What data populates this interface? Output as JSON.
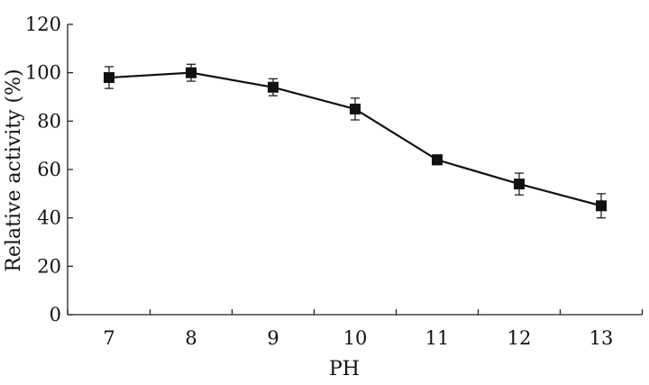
{
  "chart_data": {
    "type": "line",
    "xlabel": "PH",
    "ylabel": "Relative activity (%)",
    "x": [
      "7",
      "8",
      "9",
      "10",
      "11",
      "12",
      "13"
    ],
    "ylim": [
      0,
      120
    ],
    "yticks": [
      "0",
      "20",
      "40",
      "60",
      "80",
      "100",
      "120"
    ],
    "grid": false,
    "series": [
      {
        "values": [
          98,
          100,
          94,
          85,
          64,
          54,
          45
        ],
        "error": [
          4.5,
          3.5,
          3.5,
          4.5,
          2,
          4.5,
          5
        ]
      }
    ],
    "marker": "square",
    "colors": {
      "line": "#111111",
      "axis": "#222222"
    }
  }
}
